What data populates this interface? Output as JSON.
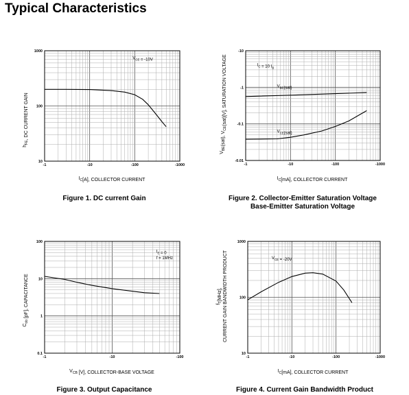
{
  "page": {
    "title": "Typical Characteristics"
  },
  "chart_data": [
    {
      "type": "line",
      "caption": "Figure 1. DC current Gain",
      "xlabel_main": "I",
      "xlabel_sub": "C",
      "xlabel_rest": "[A], COLLECTOR CURRENT",
      "ylabel_main": "h",
      "ylabel_sub": "FE",
      "ylabel_rest": ", DC CURRENT GAIN",
      "x_scale": "log",
      "y_scale": "log",
      "xlim": [
        1,
        1000
      ],
      "ylim": [
        10,
        1000
      ],
      "x_ticks": [
        1,
        10,
        100,
        1000
      ],
      "x_tick_labels": [
        "-1",
        "-10",
        "-100",
        "-1000"
      ],
      "y_ticks": [
        10,
        100,
        1000
      ],
      "y_tick_labels": [
        "10",
        "100",
        "1000"
      ],
      "grid": true,
      "annotations": [
        {
          "main": "V",
          "sub": "CE",
          "rest": " = -10V",
          "x": 90,
          "y": 700
        }
      ],
      "series": [
        {
          "x": [
            1,
            3,
            10,
            30,
            60,
            100,
            150,
            200,
            300,
            400,
            500
          ],
          "y": [
            200,
            200,
            198,
            190,
            178,
            160,
            132,
            105,
            70,
            52,
            42
          ]
        }
      ]
    },
    {
      "type": "line",
      "caption": "Figure 2. Collector-Emitter Saturation Voltage",
      "caption2": "Base-Emitter Saturation Voltage",
      "xlabel_main": "I",
      "xlabel_sub": "C",
      "xlabel_rest": "[mA], COLLECTOR CURRENT",
      "ylabel_main": "V",
      "ylabel_sub": "BE",
      "ylabel_rest": "(sat), V",
      "ylabel_sub2": "CE",
      "ylabel_rest2": "(sat)[V], SATURATION VOLTAGE",
      "x_scale": "log",
      "y_scale": "log",
      "xlim": [
        1,
        1000
      ],
      "ylim": [
        0.01,
        10
      ],
      "x_ticks": [
        1,
        10,
        100,
        1000
      ],
      "x_tick_labels": [
        "-1",
        "-10",
        "-100",
        "-1000"
      ],
      "y_ticks": [
        0.01,
        0.1,
        1,
        10
      ],
      "y_tick_labels": [
        "-0.01",
        "-0.1",
        "-1",
        "-10"
      ],
      "grid": true,
      "annotations": [
        {
          "main": "I",
          "sub": "C",
          "rest": " = 10 I",
          "sub2": "B",
          "x": 1.8,
          "y": 3.8
        },
        {
          "main": "V",
          "sub": "BE",
          "rest": "(sat)",
          "x": 5,
          "y": 1.0
        },
        {
          "main": "V",
          "sub": "CE",
          "rest": "(sat)",
          "x": 5,
          "y": 0.058
        }
      ],
      "series": [
        {
          "name": "V_BE(sat)",
          "x": [
            1,
            10,
            100,
            500
          ],
          "y": [
            0.56,
            0.61,
            0.67,
            0.72
          ]
        },
        {
          "name": "V_CE(sat)",
          "x": [
            1,
            5,
            10,
            20,
            50,
            100,
            200,
            500
          ],
          "y": [
            0.038,
            0.039,
            0.043,
            0.05,
            0.064,
            0.085,
            0.12,
            0.23
          ]
        }
      ]
    },
    {
      "type": "line",
      "caption": "Figure 3. Output Capacitance",
      "xlabel_main": "V",
      "xlabel_sub": "CB",
      "xlabel_rest": " [V], COLLECTOR-BASE VOLTAGE",
      "ylabel_main": "C",
      "ylabel_sub": "ob",
      "ylabel_rest": " [pF], CAPACITANCE",
      "x_scale": "log",
      "y_scale": "log",
      "xlim": [
        1,
        100
      ],
      "ylim": [
        0.1,
        100
      ],
      "x_ticks": [
        1,
        10,
        100
      ],
      "x_tick_labels": [
        "-1",
        "-10",
        "-100"
      ],
      "y_ticks": [
        0.1,
        1,
        10,
        100
      ],
      "y_tick_labels": [
        "0.1",
        "1",
        "10",
        "100"
      ],
      "grid": true,
      "annotations": [
        {
          "main": "I",
          "sub": "E",
          "rest": " = 0",
          "x": 45,
          "y": 50
        },
        {
          "main": "f = 1MHz",
          "sub": "",
          "rest": "",
          "x": 45,
          "y": 33
        }
      ],
      "series": [
        {
          "x": [
            1,
            2,
            3,
            5,
            10,
            20,
            30,
            50
          ],
          "y": [
            11.5,
            9.5,
            8.0,
            6.6,
            5.4,
            4.6,
            4.2,
            4.0
          ]
        }
      ]
    },
    {
      "type": "line",
      "caption": "Figure 4. Current Gain Bandwidth Product",
      "xlabel_main": "I",
      "xlabel_sub": "C",
      "xlabel_rest": "[mA], COLLECTOR CURRENT",
      "ylabel_main": "f",
      "ylabel_sub": "T",
      "ylabel_rest": "[MHz],",
      "ylabel_line2": "CURRENT GAIN BANDWIDTH PRODUCT",
      "x_scale": "log",
      "y_scale": "log",
      "xlim": [
        1,
        1000
      ],
      "ylim": [
        10,
        1000
      ],
      "x_ticks": [
        1,
        10,
        100,
        1000
      ],
      "x_tick_labels": [
        "-1",
        "-10",
        "-100",
        "-1000"
      ],
      "y_ticks": [
        10,
        100,
        1000
      ],
      "y_tick_labels": [
        "10",
        "100",
        "1000"
      ],
      "grid": true,
      "annotations": [
        {
          "main": "V",
          "sub": "CE",
          "rest": " = -20V",
          "x": 3.5,
          "y": 480
        }
      ],
      "series": [
        {
          "x": [
            1,
            2,
            5,
            10,
            20,
            30,
            50,
            100,
            150,
            230
          ],
          "y": [
            90,
            125,
            185,
            235,
            270,
            275,
            260,
            195,
            135,
            80
          ]
        }
      ]
    }
  ]
}
